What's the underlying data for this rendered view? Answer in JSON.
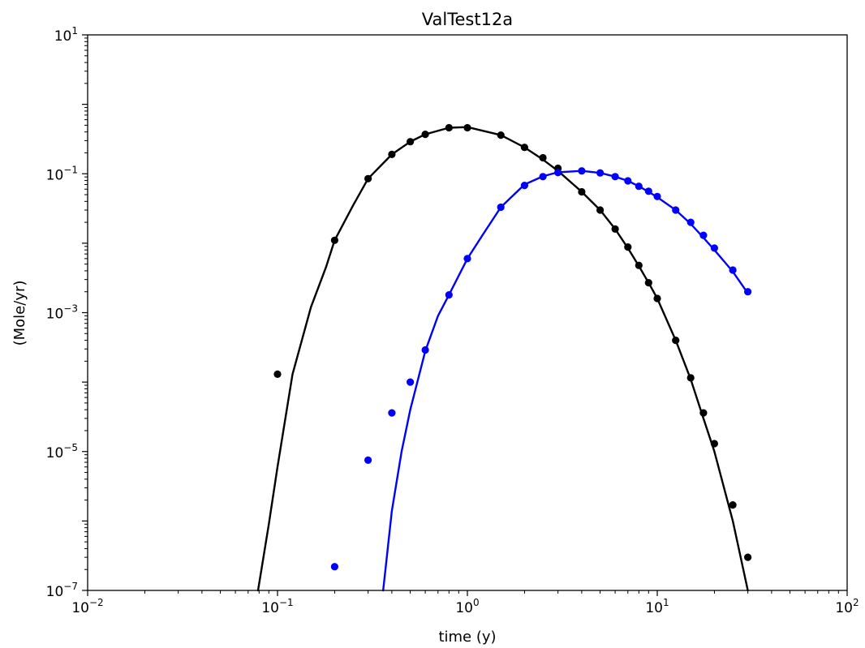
{
  "chart_data": {
    "type": "line",
    "title": "ValTest12a",
    "xlabel": "time (y)",
    "ylabel": "(Mole/yr)",
    "x_scale": "log",
    "y_scale": "log",
    "xlim": [
      0.01,
      100
    ],
    "ylim": [
      1e-07,
      10
    ],
    "grid": false,
    "x_ticks": [
      {
        "base": "10",
        "exp": "−2",
        "value": 0.01
      },
      {
        "base": "10",
        "exp": "−1",
        "value": 0.1
      },
      {
        "base": "10",
        "exp": "0",
        "value": 1
      },
      {
        "base": "10",
        "exp": "1",
        "value": 10
      },
      {
        "base": "10",
        "exp": "2",
        "value": 100
      }
    ],
    "y_ticks": [
      {
        "base": "10",
        "exp": "−7",
        "value": 1e-07
      },
      {
        "base": "10",
        "exp": "−5",
        "value": 1e-05
      },
      {
        "base": "10",
        "exp": "−3",
        "value": 0.001
      },
      {
        "base": "10",
        "exp": "−1",
        "value": 0.1
      },
      {
        "base": "10",
        "exp": "1",
        "value": 10
      }
    ],
    "series": [
      {
        "kind": "line",
        "color": "#000000",
        "x": [
          0.079,
          0.09,
          0.1,
          0.12,
          0.15,
          0.18,
          0.2,
          0.25,
          0.3,
          0.4,
          0.5,
          0.6,
          0.8,
          1.0,
          1.5,
          2.0,
          2.5,
          3.0,
          4.0,
          5.0,
          6.0,
          7.0,
          8.0,
          9.0,
          10.0,
          12.5,
          15.0,
          17.5,
          20.0,
          25.0,
          30.0
        ],
        "y": [
          1e-07,
          9e-07,
          6e-06,
          0.00013,
          0.0012,
          0.0045,
          0.011,
          0.035,
          0.085,
          0.19,
          0.29,
          0.37,
          0.46,
          0.47,
          0.36,
          0.24,
          0.16,
          0.11,
          0.055,
          0.03,
          0.016,
          0.0085,
          0.0047,
          0.0027,
          0.0016,
          0.0004,
          0.00011,
          3e-05,
          1e-05,
          1e-06,
          1e-07
        ]
      },
      {
        "kind": "scatter",
        "color": "#000000",
        "x": [
          0.1,
          0.2,
          0.3,
          0.4,
          0.5,
          0.6,
          0.8,
          1.0,
          1.5,
          2.0,
          2.5,
          3.0,
          4.0,
          5.0,
          6.0,
          7.0,
          8.0,
          9.0,
          10.0,
          12.5,
          15.0,
          17.5,
          20.0,
          25.0,
          30.0
        ],
        "y": [
          0.00013,
          0.011,
          0.085,
          0.19,
          0.29,
          0.37,
          0.46,
          0.46,
          0.36,
          0.24,
          0.17,
          0.12,
          0.055,
          0.03,
          0.016,
          0.0088,
          0.0048,
          0.0027,
          0.0016,
          0.0004,
          0.000115,
          3.6e-05,
          1.3e-05,
          1.7e-06,
          3e-07
        ]
      },
      {
        "kind": "line",
        "color": "#0000ff",
        "x": [
          0.36,
          0.4,
          0.45,
          0.5,
          0.6,
          0.7,
          0.8,
          1.0,
          1.2,
          1.5,
          2.0,
          2.5,
          3.0,
          4.0,
          5.0,
          6.0,
          7.0,
          8.0,
          9.0,
          10.0,
          12.5,
          15.0,
          17.5,
          20.0,
          25.0,
          30.0
        ],
        "y": [
          1e-07,
          1.4e-06,
          1e-05,
          4e-05,
          0.00028,
          0.0009,
          0.0018,
          0.006,
          0.013,
          0.033,
          0.07,
          0.092,
          0.105,
          0.11,
          0.103,
          0.091,
          0.079,
          0.066,
          0.055,
          0.046,
          0.03,
          0.019,
          0.012,
          0.008,
          0.0039,
          0.0019
        ]
      },
      {
        "kind": "scatter",
        "color": "#0000ff",
        "x": [
          0.2,
          0.3,
          0.4,
          0.5,
          0.6,
          0.8,
          1.0,
          1.5,
          2.0,
          2.5,
          3.0,
          4.0,
          5.0,
          6.0,
          7.0,
          8.0,
          9.0,
          10.0,
          12.5,
          15.0,
          17.5,
          20.0,
          25.0,
          30.0
        ],
        "y": [
          2.2e-07,
          7.5e-06,
          3.6e-05,
          0.0001,
          0.00029,
          0.0018,
          0.006,
          0.033,
          0.068,
          0.091,
          0.104,
          0.11,
          0.103,
          0.091,
          0.079,
          0.066,
          0.056,
          0.047,
          0.03,
          0.02,
          0.013,
          0.0085,
          0.0041,
          0.002
        ]
      }
    ]
  }
}
